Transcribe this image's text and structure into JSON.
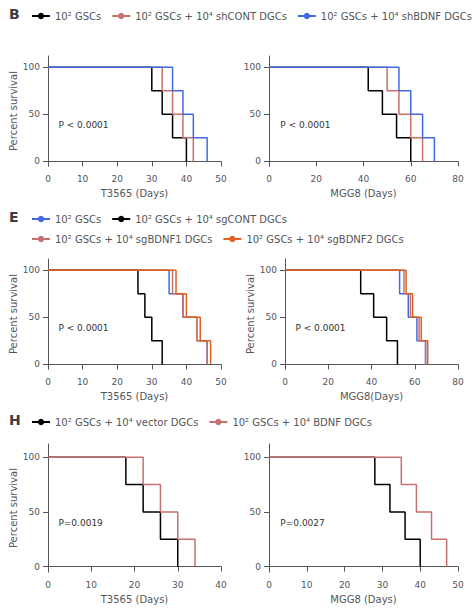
{
  "chart_data": [
    {
      "type": "step",
      "title": "B",
      "xlabel": "T3565 (Days)",
      "ylabel": "Percent survival",
      "xlim": [
        0,
        50
      ],
      "xticks": [
        0,
        10,
        20,
        30,
        40,
        50
      ],
      "ylim": [
        -5,
        112
      ],
      "yticks": [
        0,
        50,
        100
      ],
      "grid": false,
      "legend": "upper left",
      "annotations": [
        "P < 0.0001"
      ],
      "series": [
        {
          "name": "10² GSCs",
          "color": "#000000",
          "x": [
            0,
            30,
            30,
            33,
            33,
            36,
            36,
            40,
            40
          ],
          "values": [
            100,
            100,
            75,
            75,
            50,
            50,
            25,
            25,
            0
          ]
        },
        {
          "name": "10² GSCs + 10⁴ shCONT DGCs",
          "color": "#c87070",
          "x": [
            0,
            33,
            33,
            36,
            36,
            39,
            39,
            42,
            42
          ],
          "values": [
            100,
            100,
            75,
            75,
            50,
            50,
            25,
            25,
            0
          ]
        },
        {
          "name": "10² GSCs + 10⁴ shBDNF DGCs",
          "color": "#4169e1",
          "x": [
            0,
            36,
            36,
            39,
            39,
            42,
            42,
            46,
            46
          ],
          "values": [
            100,
            100,
            75,
            75,
            50,
            50,
            25,
            25,
            0
          ]
        }
      ]
    },
    {
      "type": "step",
      "xlabel": "MGG8 (Days)",
      "xlim": [
        0,
        80
      ],
      "xticks": [
        0,
        20,
        40,
        60,
        80
      ],
      "ylim": [
        -5,
        112
      ],
      "yticks": [
        0,
        50,
        100
      ],
      "grid": false,
      "annotations": [
        "P < 0.0001"
      ],
      "series": [
        {
          "color": "#000000",
          "x": [
            0,
            42,
            42,
            48,
            48,
            54,
            54,
            60,
            60
          ],
          "values": [
            100,
            100,
            75,
            75,
            50,
            50,
            25,
            25,
            0
          ]
        },
        {
          "color": "#c87070",
          "x": [
            0,
            50,
            50,
            55,
            55,
            60,
            60,
            65,
            65
          ],
          "values": [
            100,
            100,
            75,
            75,
            50,
            50,
            25,
            25,
            0
          ]
        },
        {
          "color": "#4169e1",
          "x": [
            0,
            55,
            55,
            60,
            60,
            65,
            65,
            70,
            70
          ],
          "values": [
            100,
            100,
            75,
            75,
            50,
            50,
            25,
            25,
            0
          ]
        }
      ]
    },
    {
      "type": "step",
      "title": "E",
      "xlabel": "T3565 (Days)",
      "ylabel": "Percent survival",
      "xlim": [
        0,
        50
      ],
      "xticks": [
        0,
        10,
        20,
        30,
        40,
        50
      ],
      "ylim": [
        -5,
        112
      ],
      "yticks": [
        0,
        50,
        100
      ],
      "grid": false,
      "legend": "upper left",
      "annotations": [
        "P < 0.0001"
      ],
      "series": [
        {
          "name": "10² GSCs",
          "color": "#4169e1",
          "x": [
            0,
            35,
            35,
            39,
            39,
            43,
            43,
            46,
            46
          ],
          "values": [
            100,
            100,
            75,
            75,
            50,
            50,
            25,
            25,
            0
          ]
        },
        {
          "name": "10² GSCs + 10⁴ sgCONT DGCs",
          "color": "#000000",
          "x": [
            0,
            26,
            26,
            28,
            28,
            30,
            30,
            33,
            33
          ],
          "values": [
            100,
            100,
            75,
            75,
            50,
            50,
            25,
            25,
            0
          ]
        },
        {
          "name": "10² GSCs + 10⁴ sgBDNF1 DGCs",
          "color": "#c87070",
          "x": [
            0,
            36,
            36,
            39,
            39,
            43,
            43,
            46,
            46
          ],
          "values": [
            100,
            100,
            75,
            75,
            50,
            50,
            25,
            25,
            0
          ]
        },
        {
          "name": "10² GSCs + 10⁴ sgBDNF2 DGCs",
          "color": "#e06020",
          "x": [
            0,
            37,
            37,
            40,
            40,
            44,
            44,
            47,
            47
          ],
          "values": [
            100,
            100,
            75,
            75,
            50,
            50,
            25,
            25,
            0
          ]
        }
      ]
    },
    {
      "type": "step",
      "xlabel": "MGG8(Days)",
      "ylabel": "Percent survival",
      "xlim": [
        0,
        80
      ],
      "xticks": [
        0,
        20,
        40,
        60,
        80
      ],
      "ylim": [
        -5,
        112
      ],
      "yticks": [
        0,
        50,
        100
      ],
      "grid": false,
      "annotations": [
        "P < 0.0001"
      ],
      "series": [
        {
          "color": "#4169e1",
          "x": [
            0,
            53,
            53,
            57,
            57,
            61,
            61,
            65,
            65
          ],
          "values": [
            100,
            100,
            75,
            75,
            50,
            50,
            25,
            25,
            0
          ]
        },
        {
          "color": "#000000",
          "x": [
            0,
            35,
            35,
            41,
            41,
            47,
            47,
            52,
            52
          ],
          "values": [
            100,
            100,
            75,
            75,
            50,
            50,
            25,
            25,
            0
          ]
        },
        {
          "color": "#c87070",
          "x": [
            0,
            55,
            55,
            58,
            58,
            62,
            62,
            65,
            65
          ],
          "values": [
            100,
            100,
            75,
            75,
            50,
            50,
            25,
            25,
            0
          ]
        },
        {
          "color": "#e06020",
          "x": [
            0,
            56,
            56,
            59,
            59,
            63,
            63,
            66,
            66
          ],
          "values": [
            100,
            100,
            75,
            75,
            50,
            50,
            25,
            25,
            0
          ]
        }
      ]
    },
    {
      "type": "step",
      "title": "H",
      "xlabel": "T3565 (Days)",
      "ylabel": "Percent survival",
      "xlim": [
        0,
        40
      ],
      "xticks": [
        0,
        10,
        20,
        30,
        40
      ],
      "ylim": [
        -5,
        112
      ],
      "yticks": [
        0,
        50,
        100
      ],
      "grid": false,
      "legend": "upper left",
      "annotations": [
        "P=0.0019"
      ],
      "series": [
        {
          "name": "10² GSCs + 10⁴ vector DGCs",
          "color": "#000000",
          "x": [
            0,
            18,
            18,
            22,
            22,
            26,
            26,
            30,
            30
          ],
          "values": [
            100,
            100,
            75,
            75,
            50,
            50,
            25,
            25,
            0
          ]
        },
        {
          "name": "10² GSCs + 10⁴ BDNF DGCs",
          "color": "#c87070",
          "x": [
            0,
            22,
            22,
            26,
            26,
            30,
            30,
            34,
            34
          ],
          "values": [
            100,
            100,
            75,
            75,
            50,
            50,
            25,
            25,
            0
          ]
        }
      ]
    },
    {
      "type": "step",
      "xlabel": "MGG8 (Days)",
      "xlim": [
        0,
        50
      ],
      "xticks": [
        0,
        10,
        20,
        30,
        40,
        50
      ],
      "ylim": [
        -5,
        112
      ],
      "yticks": [
        0,
        50,
        100
      ],
      "grid": false,
      "annotations": [
        "P=0.0027"
      ],
      "series": [
        {
          "color": "#000000",
          "x": [
            0,
            28,
            28,
            32,
            32,
            36,
            36,
            40,
            40
          ],
          "values": [
            100,
            100,
            75,
            75,
            50,
            50,
            25,
            25,
            0
          ]
        },
        {
          "color": "#c87070",
          "x": [
            0,
            35,
            35,
            39,
            39,
            43,
            43,
            47,
            47
          ],
          "values": [
            100,
            100,
            75,
            75,
            50,
            50,
            25,
            25,
            0
          ]
        }
      ]
    }
  ]
}
